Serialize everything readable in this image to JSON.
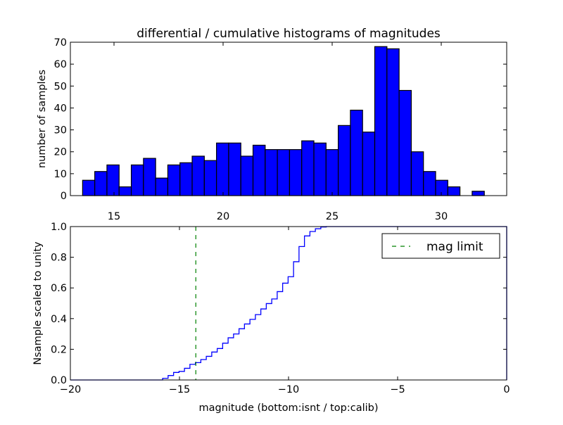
{
  "chart_data": [
    {
      "type": "bar",
      "title": "differential / cumulative histograms of magnitudes",
      "xlabel": "",
      "ylabel": "number of samples",
      "xlim": [
        13,
        33
      ],
      "ylim": [
        0,
        70
      ],
      "xticks": [
        15,
        20,
        25,
        30
      ],
      "yticks": [
        0,
        10,
        20,
        30,
        40,
        50,
        60,
        70
      ],
      "bin_start": 13.56,
      "bin_width": 0.558,
      "values": [
        7,
        11,
        14,
        4,
        14,
        17,
        8,
        14,
        15,
        18,
        16,
        24,
        24,
        18,
        23,
        21,
        21,
        21,
        25,
        24,
        21,
        32,
        39,
        29,
        68,
        67,
        48,
        20,
        11,
        7,
        4,
        0,
        2
      ],
      "color": "#0000ff"
    },
    {
      "type": "line",
      "style": "cumulative-step",
      "xlabel": "magnitude (bottom:isnt / top:calib)",
      "ylabel": "Nsample scaled to unity",
      "xlim": [
        -20,
        0
      ],
      "ylim": [
        0,
        1
      ],
      "xticks": [
        -20,
        -15,
        -10,
        -5,
        0
      ],
      "yticks": [
        0.0,
        0.2,
        0.4,
        0.6,
        0.8,
        1.0
      ],
      "step_start": -15.77,
      "step_width": 0.25,
      "values": [
        0.011,
        0.029,
        0.049,
        0.056,
        0.076,
        0.102,
        0.113,
        0.133,
        0.154,
        0.182,
        0.205,
        0.24,
        0.275,
        0.3,
        0.334,
        0.365,
        0.395,
        0.426,
        0.463,
        0.498,
        0.528,
        0.576,
        0.631,
        0.673,
        0.771,
        0.87,
        0.939,
        0.968,
        0.986,
        0.997,
        1.0
      ],
      "color": "#0000ff",
      "mag_limit": -14.25,
      "mag_limit_color": "#008000",
      "legend": {
        "label": "mag limit",
        "placement": "top-right"
      }
    }
  ]
}
